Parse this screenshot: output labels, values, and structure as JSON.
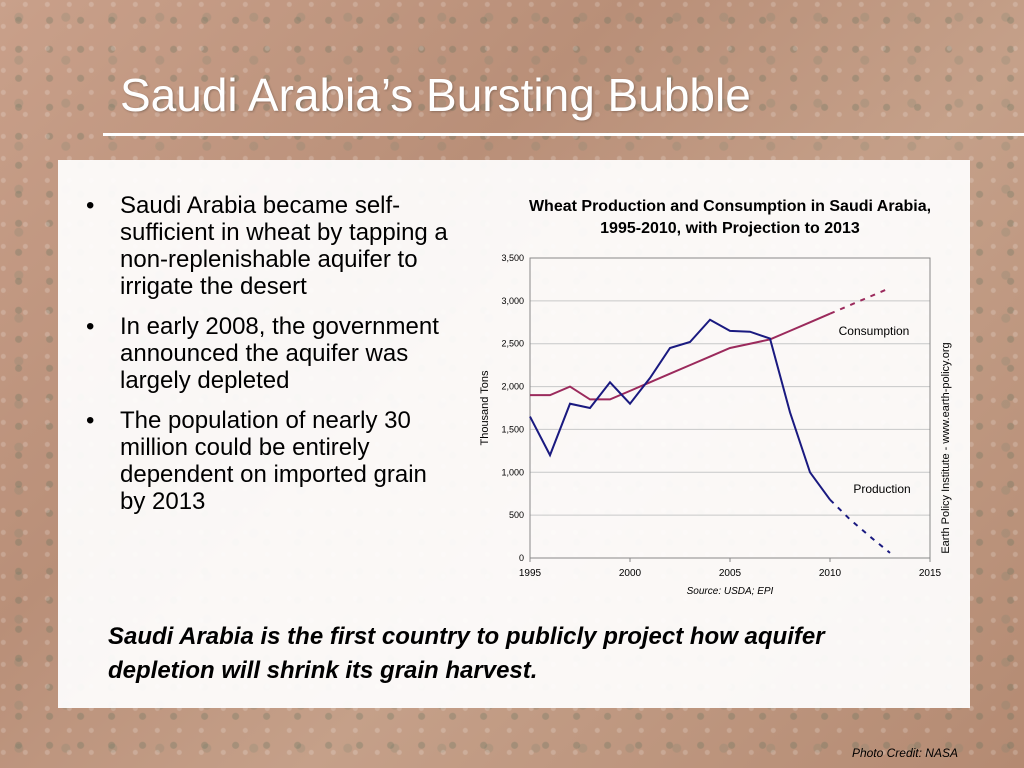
{
  "slide": {
    "title": "Saudi Arabia’s Bursting Bubble",
    "bullets": [
      "Saudi Arabia became self-sufficient in wheat by tapping a non-replenishable aquifer to irrigate the desert",
      "In early 2008, the government announced the aquifer was largely depleted",
      "The population of nearly 30 million could be entirely dependent on imported grain by 2013"
    ],
    "caption": "Saudi Arabia is the first country to publicly project how aquifer depletion will shrink its grain harvest.",
    "photo_credit": "Photo Credit: NASA",
    "side_credit": "Earth Policy Institute - www.earth-policy.org",
    "source_note": "Source: USDA; EPI"
  },
  "chart_data": {
    "type": "line",
    "title": "Wheat Production and Consumption in Saudi Arabia, 1995-2010, with Projection to 2013",
    "ylabel": "Thousand Tons",
    "xlabel": "",
    "xlim": [
      1995,
      2015
    ],
    "ylim": [
      0,
      3500
    ],
    "x_ticks": [
      "1995",
      "2000",
      "2005",
      "2010",
      "2015"
    ],
    "y_ticks": [
      "0",
      "500",
      "1,000",
      "1,500",
      "2,000",
      "2,500",
      "3,000",
      "3,500"
    ],
    "grid": "horizontal",
    "colors": {
      "production": "#1a1a80",
      "consumption": "#9b2a5c"
    },
    "series": [
      {
        "name": "Consumption",
        "color": "#9b2a5c",
        "x": [
          1995,
          1996,
          1997,
          1998,
          1999,
          2000,
          2001,
          2002,
          2003,
          2004,
          2005,
          2006,
          2007,
          2008,
          2009,
          2010
        ],
        "values": [
          1900,
          1900,
          2000,
          1850,
          1850,
          1950,
          2050,
          2150,
          2250,
          2350,
          2450,
          2500,
          2550,
          2650,
          2750,
          2850
        ],
        "projection_x": [
          2010,
          2011,
          2012,
          2013
        ],
        "projection_values": [
          2850,
          2950,
          3050,
          3150
        ]
      },
      {
        "name": "Production",
        "color": "#1a1a80",
        "x": [
          1995,
          1996,
          1997,
          1998,
          1999,
          2000,
          2001,
          2002,
          2003,
          2004,
          2005,
          2006,
          2007,
          2008,
          2009,
          2010
        ],
        "values": [
          1650,
          1200,
          1800,
          1750,
          2050,
          1800,
          2100,
          2450,
          2520,
          2780,
          2650,
          2640,
          2560,
          1700,
          1000,
          680
        ],
        "projection_x": [
          2010,
          2011,
          2012,
          2013
        ],
        "projection_values": [
          680,
          450,
          250,
          60
        ]
      }
    ]
  }
}
